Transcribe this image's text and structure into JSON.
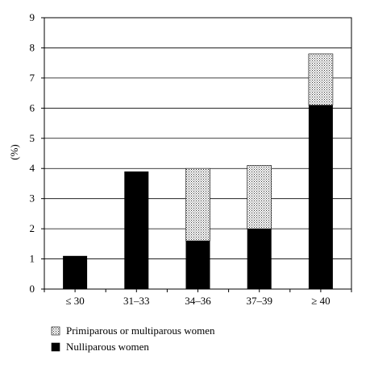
{
  "chart_data": {
    "type": "bar",
    "stacked": true,
    "categories": [
      "≤ 30",
      "31–33",
      "34–36",
      "37–39",
      "≥ 40"
    ],
    "series": [
      {
        "name": "Nulliparous women",
        "values": [
          1.1,
          3.9,
          1.6,
          2.0,
          6.1
        ],
        "fill": "solid-black"
      },
      {
        "name": "Primiparous or multiparous women",
        "values": [
          0,
          0,
          2.4,
          2.1,
          1.7
        ],
        "fill": "dotted"
      }
    ],
    "ylabel": "(%)",
    "xlabel": "",
    "ylim": [
      0,
      9
    ],
    "yticks": [
      "0",
      "1",
      "2",
      "3",
      "4",
      "5",
      "6",
      "7",
      "8",
      "9"
    ],
    "grid": true,
    "legend_position": "bottom-left",
    "legend_order": [
      "Primiparous or multiparous women",
      "Nulliparous women"
    ],
    "colors": {
      "solid": "#000000",
      "dotted_bg": "#ffffff",
      "dot": "#333333",
      "grid": "#000000"
    }
  }
}
